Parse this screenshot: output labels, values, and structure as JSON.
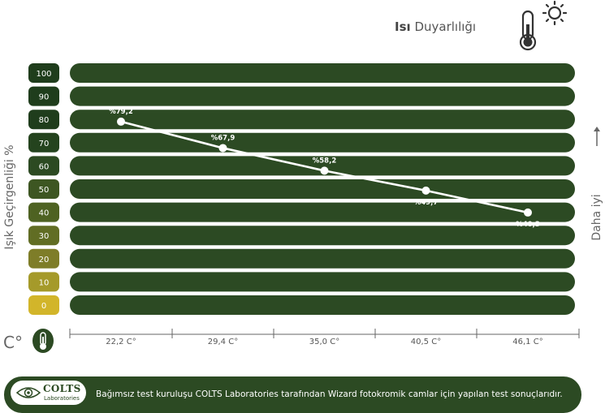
{
  "header": {
    "title_bold": "Isı",
    "title_rest": "Duyarlılığı"
  },
  "icons": {
    "top_right": "thermometer-sun-icon",
    "unit_badge": "thermometer-icon",
    "better_arrow": "arrow-up-icon",
    "logo": "eye-icon"
  },
  "chart_data": {
    "type": "line",
    "ylabel": "Işık Geçirgenliği %",
    "y_ticks": [
      "100",
      "90",
      "80",
      "70",
      "60",
      "50",
      "40",
      "30",
      "20",
      "10",
      "0"
    ],
    "ylim": [
      0,
      100
    ],
    "x_categories": [
      "22,2 C°",
      "29,4 C°",
      "35,0 C°",
      "40,5 C°",
      "46,1 C°"
    ],
    "x_unit": "C°",
    "series": [
      {
        "values": [
          79.2,
          67.9,
          58.2,
          49.7,
          40.3
        ],
        "labels": [
          "%79,2",
          "%67,9",
          "%58,2",
          "%49,7",
          "%40,3"
        ]
      }
    ],
    "right_note": "Daha iyi",
    "colors": {
      "bands": "#2c4a23",
      "line": "#ffffff",
      "badge_scale": [
        "#1f3d1c",
        "#1f3d1c",
        "#1f3d1c",
        "#24431e",
        "#2c4a22",
        "#3d5622",
        "#4e6222",
        "#616d24",
        "#7e7d28",
        "#a59a2a",
        "#d2b52a"
      ]
    }
  },
  "footer": {
    "logo_name": "COLTS",
    "logo_sub": "Laboratories",
    "text": "Bağımsız test kuruluşu COLTS Laboratories tarafından Wizard fotokromik camlar için yapılan test sonuçlarıdır."
  }
}
